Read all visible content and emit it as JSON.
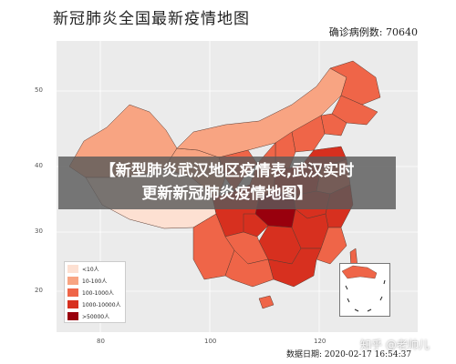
{
  "title": "新冠肺炎全国最新疫情地图",
  "total_label": "确诊病例数: 70640",
  "y_ticks": [
    "50",
    "40",
    "30",
    "20"
  ],
  "x_ticks": [
    "80",
    "100",
    "120"
  ],
  "banner": {
    "line1": "【新型肺炎武汉地区疫情表,武汉实时",
    "line2": "更新新冠肺炎疫情地图】"
  },
  "legend": [
    {
      "label": "<10人",
      "color": "#fde0d2"
    },
    {
      "label": "10-100人",
      "color": "#f8a482"
    },
    {
      "label": "100-1000人",
      "color": "#ef6548"
    },
    {
      "label": "1000-10000人",
      "color": "#d7301f"
    },
    {
      "label": ">50000人",
      "color": "#99000d"
    }
  ],
  "date_label": "数据日期: 2020-02-17 16:54:37",
  "watermark": "知乎 @老帅儿"
}
